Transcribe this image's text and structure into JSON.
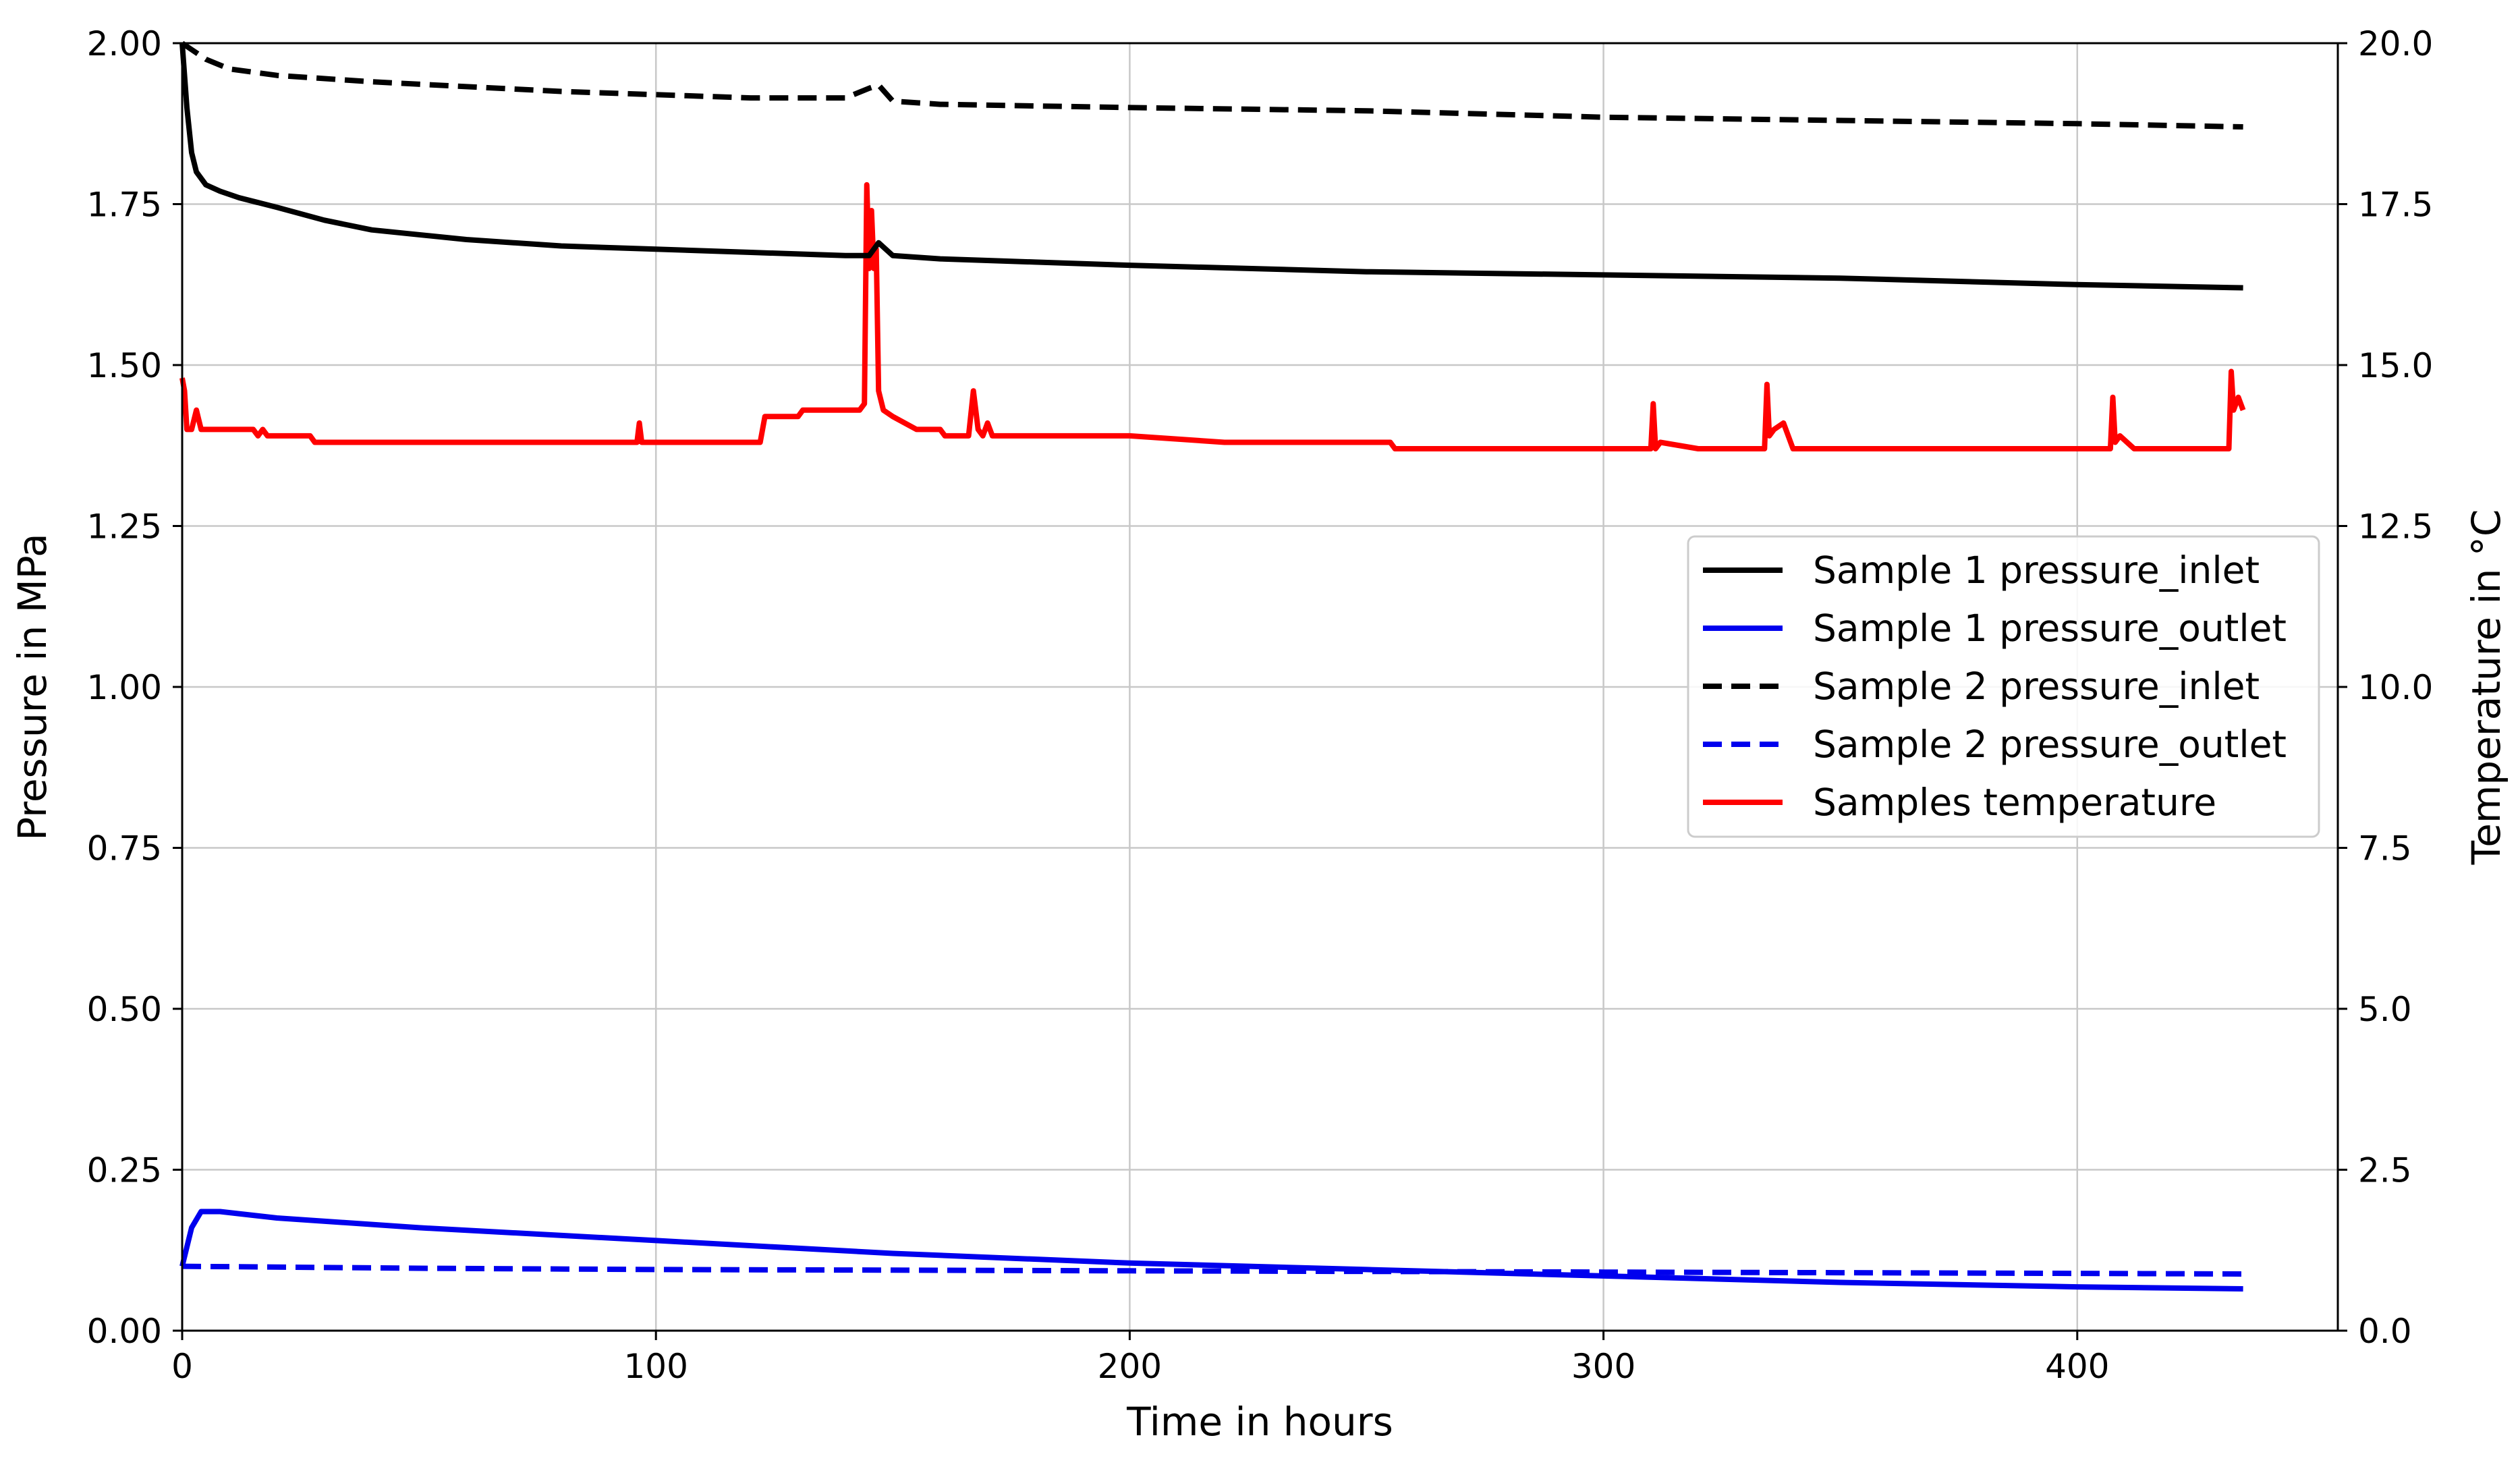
{
  "chart_data": {
    "type": "line",
    "xlabel": "Time in hours",
    "ylabel": "Pressure in MPa",
    "y2label": "Temperature in °C",
    "xlim": [
      0,
      455
    ],
    "ylim": [
      0,
      2.0
    ],
    "y2lim": [
      0,
      20.0
    ],
    "xticks": [
      "0",
      "100",
      "200",
      "300",
      "400"
    ],
    "yticks": [
      "0.00",
      "0.25",
      "0.50",
      "0.75",
      "1.00",
      "1.25",
      "1.50",
      "1.75",
      "2.00"
    ],
    "y2ticks": [
      "0.0",
      "2.5",
      "5.0",
      "7.5",
      "10.0",
      "12.5",
      "15.0",
      "17.5",
      "20.0"
    ],
    "grid": true,
    "legend_position": "center-right",
    "series": [
      {
        "name": "Sample 1 pressure_inlet",
        "color": "#000000",
        "dash": "solid",
        "axis": "left",
        "x": [
          0,
          1,
          2,
          3,
          5,
          8,
          12,
          20,
          30,
          40,
          60,
          80,
          100,
          120,
          140,
          145,
          147,
          150,
          160,
          180,
          200,
          250,
          300,
          350,
          400,
          435
        ],
        "y": [
          2.0,
          1.9,
          1.83,
          1.8,
          1.78,
          1.77,
          1.76,
          1.745,
          1.725,
          1.71,
          1.695,
          1.685,
          1.68,
          1.675,
          1.67,
          1.67,
          1.69,
          1.67,
          1.665,
          1.66,
          1.655,
          1.645,
          1.64,
          1.635,
          1.625,
          1.62
        ]
      },
      {
        "name": "Sample 1 pressure_outlet",
        "color": "#0000ee",
        "dash": "solid",
        "axis": "left",
        "x": [
          0,
          2,
          4,
          8,
          20,
          50,
          100,
          150,
          200,
          250,
          300,
          350,
          400,
          435
        ],
        "y": [
          0.1,
          0.16,
          0.185,
          0.185,
          0.175,
          0.16,
          0.14,
          0.12,
          0.105,
          0.095,
          0.085,
          0.075,
          0.068,
          0.065
        ]
      },
      {
        "name": "Sample 2 pressure_inlet",
        "color": "#000000",
        "dash": "dashed",
        "axis": "left",
        "x": [
          0,
          2,
          5,
          10,
          20,
          40,
          80,
          120,
          140,
          145,
          147,
          150,
          160,
          200,
          250,
          300,
          350,
          400,
          435
        ],
        "y": [
          2.0,
          1.99,
          1.975,
          1.96,
          1.95,
          1.94,
          1.925,
          1.915,
          1.915,
          1.93,
          1.935,
          1.91,
          1.905,
          1.9,
          1.895,
          1.885,
          1.88,
          1.875,
          1.87
        ]
      },
      {
        "name": "Sample 2 pressure_outlet",
        "color": "#0000ee",
        "dash": "dashed",
        "axis": "left",
        "x": [
          0,
          50,
          100,
          150,
          200,
          250,
          300,
          350,
          400,
          435
        ],
        "y": [
          0.1,
          0.097,
          0.095,
          0.094,
          0.093,
          0.092,
          0.091,
          0.09,
          0.089,
          0.088
        ]
      },
      {
        "name": "Samples temperature",
        "color": "#ff0000",
        "dash": "solid",
        "axis": "right",
        "x": [
          0,
          0.5,
          1,
          2,
          3,
          4,
          5,
          15,
          16,
          17,
          18,
          27,
          28,
          96,
          96.5,
          97,
          98,
          122,
          123,
          124,
          125,
          130,
          131,
          142,
          143,
          144,
          144.5,
          145,
          145.5,
          146,
          146.5,
          147,
          148,
          150,
          155,
          160,
          161,
          166,
          167,
          168,
          169,
          170,
          171,
          200,
          220,
          255,
          256,
          300,
          310,
          310.5,
          311,
          312,
          320,
          334,
          334.5,
          335,
          336,
          338,
          340,
          400,
          407,
          407.5,
          408,
          409,
          412,
          413,
          432,
          432.5,
          433,
          434,
          435
        ],
        "y": [
          14.8,
          14.6,
          14.0,
          14.0,
          14.3,
          14.0,
          14.0,
          14.0,
          13.9,
          14.0,
          13.9,
          13.9,
          13.8,
          13.8,
          14.1,
          13.8,
          13.8,
          13.8,
          14.2,
          14.2,
          14.2,
          14.2,
          14.3,
          14.3,
          14.3,
          14.4,
          17.8,
          16.5,
          17.4,
          16.5,
          16.8,
          14.6,
          14.3,
          14.2,
          14.0,
          14.0,
          13.9,
          13.9,
          14.6,
          14.0,
          13.9,
          14.1,
          13.9,
          13.9,
          13.8,
          13.8,
          13.7,
          13.7,
          13.7,
          14.4,
          13.7,
          13.8,
          13.7,
          13.7,
          14.7,
          13.9,
          14.0,
          14.1,
          13.7,
          13.7,
          13.7,
          14.5,
          13.8,
          13.9,
          13.7,
          13.7,
          13.7,
          14.9,
          14.3,
          14.5,
          14.3
        ]
      }
    ]
  }
}
